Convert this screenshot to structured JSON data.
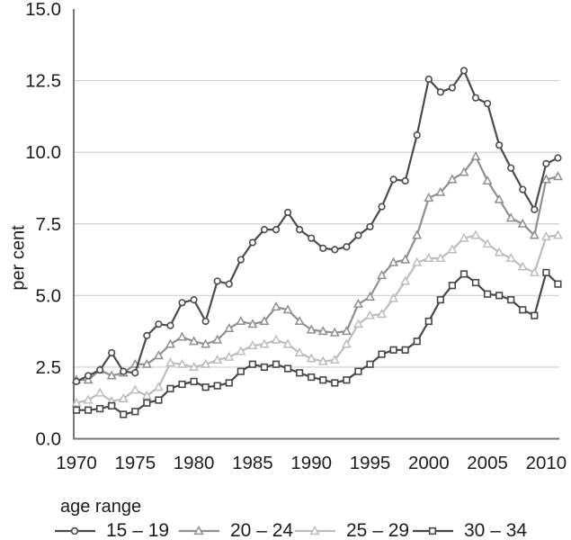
{
  "chart_data": {
    "type": "line",
    "title": "",
    "xlabel": "",
    "ylabel": "per cent",
    "legend_title": "age range",
    "legend_position": "bottom",
    "grid": "horizontal",
    "ylim": [
      0,
      15
    ],
    "yticks": [
      "0.0",
      "2.5",
      "5.0",
      "7.5",
      "10.0",
      "12.5",
      "15.0"
    ],
    "xticks": [
      "1970",
      "1975",
      "1980",
      "1985",
      "1990",
      "1995",
      "2000",
      "2005",
      "2010"
    ],
    "x_range": [
      1970,
      2011
    ],
    "x": [
      1970,
      1971,
      1972,
      1973,
      1974,
      1975,
      1976,
      1977,
      1978,
      1979,
      1980,
      1981,
      1982,
      1983,
      1984,
      1985,
      1986,
      1987,
      1988,
      1989,
      1990,
      1991,
      1992,
      1993,
      1994,
      1995,
      1996,
      1997,
      1998,
      1999,
      2000,
      2001,
      2002,
      2003,
      2004,
      2005,
      2006,
      2007,
      2008,
      2009,
      2010,
      2011
    ],
    "series": [
      {
        "name": "15 – 19",
        "marker": "circle",
        "color": "#4b4b4b",
        "values": [
          2.0,
          2.2,
          2.4,
          3.0,
          2.35,
          2.3,
          3.6,
          4.0,
          3.95,
          4.75,
          4.85,
          4.1,
          5.5,
          5.4,
          6.25,
          6.85,
          7.3,
          7.3,
          7.9,
          7.3,
          7.0,
          6.65,
          6.6,
          6.7,
          7.1,
          7.4,
          8.1,
          9.05,
          9.0,
          10.6,
          12.55,
          12.1,
          12.25,
          12.85,
          11.9,
          11.7,
          10.25,
          9.45,
          8.7,
          8.0,
          9.6,
          9.8
        ]
      },
      {
        "name": "20 – 24",
        "marker": "triangle",
        "color": "#8f8f8f",
        "values": [
          2.05,
          2.05,
          2.4,
          2.2,
          2.3,
          2.6,
          2.6,
          2.9,
          3.3,
          3.55,
          3.4,
          3.3,
          3.45,
          3.85,
          4.1,
          4.0,
          4.1,
          4.6,
          4.5,
          4.1,
          3.8,
          3.75,
          3.7,
          3.75,
          4.7,
          4.95,
          5.7,
          6.15,
          6.25,
          7.1,
          8.4,
          8.6,
          9.05,
          9.3,
          9.85,
          9.0,
          8.35,
          7.7,
          7.5,
          7.1,
          9.05,
          9.15
        ]
      },
      {
        "name": "25 – 29",
        "marker": "triangle",
        "color": "#bdbdbd",
        "values": [
          1.25,
          1.35,
          1.6,
          1.3,
          1.4,
          1.7,
          1.5,
          1.8,
          2.65,
          2.6,
          2.5,
          2.6,
          2.75,
          2.85,
          3.05,
          3.25,
          3.3,
          3.45,
          3.3,
          3.0,
          2.8,
          2.7,
          2.75,
          3.3,
          4.0,
          4.3,
          4.35,
          4.9,
          5.5,
          6.15,
          6.3,
          6.3,
          6.6,
          7.0,
          7.1,
          6.8,
          6.5,
          6.3,
          6.0,
          5.8,
          7.05,
          7.1
        ]
      },
      {
        "name": "30 – 34",
        "marker": "square",
        "color": "#474747",
        "values": [
          1.0,
          1.0,
          1.05,
          1.15,
          0.85,
          0.95,
          1.25,
          1.35,
          1.75,
          1.9,
          2.0,
          1.8,
          1.85,
          1.95,
          2.35,
          2.6,
          2.5,
          2.6,
          2.45,
          2.3,
          2.15,
          2.05,
          1.95,
          2.05,
          2.35,
          2.6,
          2.95,
          3.1,
          3.1,
          3.4,
          4.1,
          4.85,
          5.35,
          5.75,
          5.45,
          5.05,
          5.0,
          4.85,
          4.5,
          4.3,
          5.8,
          5.4
        ]
      }
    ],
    "colors": {
      "grid": "#cfcfcf",
      "axis": "#767676",
      "text": "#1c1c1c",
      "marker_fill": "#ffffff"
    }
  }
}
